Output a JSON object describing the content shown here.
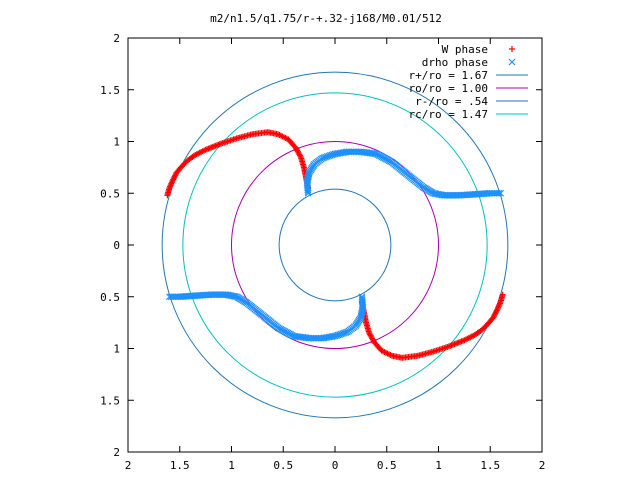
{
  "chart_data": {
    "type": "scatter",
    "title": "m2/n1.5/q1.75/r-+.32-j168/M0.01/512",
    "xlim": [
      -2,
      2
    ],
    "ylim": [
      -2,
      2
    ],
    "x_ticks": [
      -2,
      -1.5,
      -1,
      -0.5,
      0,
      0.5,
      1,
      1.5,
      2
    ],
    "y_ticks": [
      -2,
      -1.5,
      -1,
      -0.5,
      0,
      0.5,
      1,
      1.5,
      2
    ],
    "x_tick_labels": [
      "2",
      "1.5",
      "1",
      "0.5",
      "0",
      "0.5",
      "1",
      "1.5",
      "2"
    ],
    "y_tick_labels": [
      "2",
      "1.5",
      "1",
      "0.5",
      "0",
      "0.5",
      "1",
      "1.5",
      "2"
    ],
    "grid": false,
    "legend_position": "top-right",
    "series": [
      {
        "name": "W phase",
        "kind": "points",
        "marker": "plus",
        "color": "#ff0000",
        "points": [
          [
            -1.62,
            0.48
          ],
          [
            -1.6,
            0.55
          ],
          [
            -1.57,
            0.62
          ],
          [
            -1.53,
            0.7
          ],
          [
            -1.48,
            0.76
          ],
          [
            -1.42,
            0.82
          ],
          [
            -1.35,
            0.87
          ],
          [
            -1.25,
            0.92
          ],
          [
            -1.1,
            0.98
          ],
          [
            -0.95,
            1.03
          ],
          [
            -0.8,
            1.07
          ],
          [
            -0.65,
            1.09
          ],
          [
            -0.55,
            1.07
          ],
          [
            -0.45,
            1.02
          ],
          [
            -0.38,
            0.94
          ],
          [
            -0.33,
            0.85
          ],
          [
            -0.3,
            0.75
          ],
          [
            -0.28,
            0.65
          ],
          [
            -0.26,
            0.55
          ],
          [
            0.26,
            -0.55
          ],
          [
            0.28,
            -0.65
          ],
          [
            0.3,
            -0.75
          ],
          [
            0.33,
            -0.85
          ],
          [
            0.38,
            -0.94
          ],
          [
            0.45,
            -1.02
          ],
          [
            0.55,
            -1.07
          ],
          [
            0.65,
            -1.09
          ],
          [
            0.8,
            -1.07
          ],
          [
            0.95,
            -1.03
          ],
          [
            1.1,
            -0.98
          ],
          [
            1.25,
            -0.92
          ],
          [
            1.35,
            -0.87
          ],
          [
            1.42,
            -0.82
          ],
          [
            1.48,
            -0.76
          ],
          [
            1.53,
            -0.7
          ],
          [
            1.57,
            -0.62
          ],
          [
            1.6,
            -0.55
          ],
          [
            1.62,
            -0.48
          ]
        ]
      },
      {
        "name": "drho phase",
        "kind": "points",
        "marker": "cross",
        "color": "#1e90ff",
        "points": [
          [
            -0.26,
            0.5
          ],
          [
            -0.27,
            0.6
          ],
          [
            -0.25,
            0.7
          ],
          [
            -0.2,
            0.78
          ],
          [
            -0.12,
            0.84
          ],
          [
            0.0,
            0.88
          ],
          [
            0.12,
            0.9
          ],
          [
            0.25,
            0.9
          ],
          [
            0.4,
            0.88
          ],
          [
            0.55,
            0.8
          ],
          [
            0.65,
            0.72
          ],
          [
            0.75,
            0.64
          ],
          [
            0.85,
            0.56
          ],
          [
            0.95,
            0.5
          ],
          [
            1.05,
            0.48
          ],
          [
            1.2,
            0.48
          ],
          [
            1.35,
            0.49
          ],
          [
            1.5,
            0.5
          ],
          [
            1.6,
            0.5
          ],
          [
            0.26,
            -0.5
          ],
          [
            0.27,
            -0.6
          ],
          [
            0.25,
            -0.7
          ],
          [
            0.2,
            -0.78
          ],
          [
            0.12,
            -0.84
          ],
          [
            0.0,
            -0.88
          ],
          [
            -0.12,
            -0.9
          ],
          [
            -0.25,
            -0.9
          ],
          [
            -0.4,
            -0.88
          ],
          [
            -0.55,
            -0.8
          ],
          [
            -0.65,
            -0.72
          ],
          [
            -0.75,
            -0.64
          ],
          [
            -0.85,
            -0.56
          ],
          [
            -0.95,
            -0.5
          ],
          [
            -1.05,
            -0.48
          ],
          [
            -1.2,
            -0.48
          ],
          [
            -1.35,
            -0.49
          ],
          [
            -1.5,
            -0.5
          ],
          [
            -1.6,
            -0.5
          ]
        ]
      },
      {
        "name": "r+/ro = 1.67",
        "kind": "circle",
        "radius": 1.67,
        "color": "#1f77b4"
      },
      {
        "name": "ro/ro = 1.00",
        "kind": "circle",
        "radius": 1.0,
        "color": "#aa00aa"
      },
      {
        "name": "r-/ro = .54",
        "kind": "circle",
        "radius": 0.54,
        "color": "#1f77b4"
      },
      {
        "name": "rc/ro = 1.47",
        "kind": "circle",
        "radius": 1.47,
        "color": "#00c0c0"
      }
    ]
  }
}
